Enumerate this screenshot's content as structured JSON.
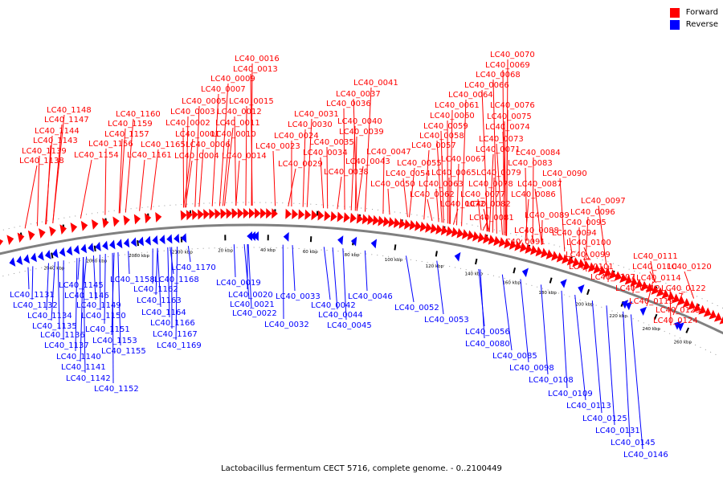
{
  "caption": "Lactobacillus fermentum CECT 5716, complete genome. - 0..2100449",
  "legend": [
    {
      "label": "Forward",
      "color": "#ff0000"
    },
    {
      "label": "Reverse",
      "color": "#0000ff"
    }
  ],
  "colors": {
    "forward": "#ff0000",
    "reverse": "#0000ff",
    "backbone": "#808080",
    "ticks": "#000000"
  },
  "kbp_markers": [
    "2040 kbp",
    "2060 kbp",
    "2080 kbp",
    "2100 kbp",
    "20 kbp",
    "40 kbp",
    "60 kbp",
    "80 kbp",
    "100 kbp",
    "120 kbp",
    "140 kbp",
    "160 kbp",
    "180 kbp",
    "200 kbp",
    "220 kbp",
    "240 kbp",
    "260 kbp"
  ],
  "forward_labels": [
    "LC40_1148",
    "LC40_1147",
    "LC40_1144",
    "LC40_1143",
    "LC40_1139",
    "LC40_1138",
    "LC40_1160",
    "LC40_1159",
    "LC40_1157",
    "LC40_1156",
    "LC40_1154",
    "LC40_1165",
    "LC40_1161",
    "LC40_0016",
    "LC40_0013",
    "LC40_0009",
    "LC40_0007",
    "LC40_0005",
    "LC40_0003",
    "LC40_0002",
    "LC40_0001",
    "LC40_0004",
    "LC40_0006",
    "LC40_0015",
    "LC40_0012",
    "LC40_0011",
    "LC40_0010",
    "LC40_0014",
    "LC40_0024",
    "LC40_0023",
    "LC40_0029",
    "LC40_0031",
    "LC40_0030",
    "LC40_0036",
    "LC40_0037",
    "LC40_0041",
    "LC40_0040",
    "LC40_0039",
    "LC40_0035",
    "LC40_0034",
    "LC40_0043",
    "LC40_0038",
    "LC40_0047",
    "LC40_0050",
    "LC40_0054",
    "LC40_0055",
    "LC40_0070",
    "LC40_0069",
    "LC40_0068",
    "LC40_0066",
    "LC40_0064",
    "LC40_0061",
    "LC40_0060",
    "LC40_0059",
    "LC40_0058",
    "LC40_0057",
    "LC40_0076",
    "LC40_0075",
    "LC40_0074",
    "LC40_0073",
    "LC40_0071",
    "LC40_0067",
    "LC40_0065",
    "LC40_0063",
    "LC40_0062",
    "LC40_0072",
    "LC40_0079",
    "LC40_0078",
    "LC40_0077",
    "LC40_0082",
    "LC40_0081",
    "LC40_0084",
    "LC40_0083",
    "LC40_0090",
    "LC40_0087",
    "LC40_0086",
    "LC40_0089",
    "LC40_0088",
    "LC40_0091",
    "LC40_0097",
    "LC40_0096",
    "LC40_0095",
    "LC40_0094",
    "LC40_0100",
    "LC40_0099",
    "LC40_0101",
    "LC40_0107",
    "LC40_0111",
    "LC40_0110",
    "LC40_0120",
    "LC40_0114",
    "LC40_0112",
    "LC40_0122",
    "LC40_0119",
    "LC40_0123",
    "LC40_0124"
  ],
  "reverse_labels": [
    "LC40_1131",
    "LC40_1132",
    "LC40_1134",
    "LC40_1135",
    "LC40_1136",
    "LC40_1137",
    "LC40_1140",
    "LC40_1141",
    "LC40_1142",
    "LC40_1152",
    "LC40_1145",
    "LC40_1146",
    "LC40_1149",
    "LC40_1150",
    "LC40_1151",
    "LC40_1153",
    "LC40_1155",
    "LC40_1158",
    "LC40_1162",
    "LC40_1163",
    "LC40_1164",
    "LC40_1166",
    "LC40_1167",
    "LC40_1169",
    "LC40_1168",
    "LC40_1170",
    "LC40_0019",
    "LC40_0020",
    "LC40_0021",
    "LC40_0022",
    "LC40_0033",
    "LC40_0032",
    "LC40_0042",
    "LC40_0044",
    "LC40_0045",
    "LC40_0046",
    "LC40_0052",
    "LC40_0053",
    "LC40_0056",
    "LC40_0080",
    "LC40_0085",
    "LC40_0098",
    "LC40_0108",
    "LC40_0109",
    "LC40_0113",
    "LC40_0125",
    "LC40_0131",
    "LC40_0145",
    "LC40_0146"
  ]
}
